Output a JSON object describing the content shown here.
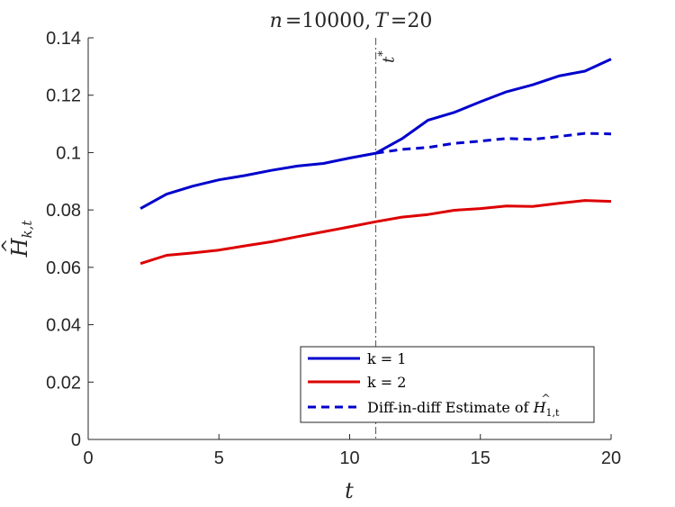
{
  "chart_data": {
    "type": "line",
    "title": "n =10000, T =20",
    "title_parts": {
      "n_sym": "n",
      "n_val": "=10000,",
      "t_sym": "T",
      "t_val": "=20"
    },
    "xlabel": "t",
    "ylabel": {
      "base": "H",
      "hat": "^",
      "subscript": "k,t"
    },
    "xlim": [
      0,
      20
    ],
    "ylim": [
      0,
      0.14
    ],
    "xticks": [
      0,
      5,
      10,
      15,
      20
    ],
    "xtick_labels": [
      "0",
      "5",
      "10",
      "15",
      "20"
    ],
    "yticks": [
      0,
      0.02,
      0.04,
      0.06,
      0.08,
      0.1,
      0.12,
      0.14
    ],
    "ytick_labels": [
      "0",
      "0.02",
      "0.04",
      "0.06",
      "0.08",
      "0.1",
      "0.12",
      "0.14"
    ],
    "grid": false,
    "legend_position": "bottom-right",
    "vline": {
      "x": 11,
      "label": {
        "base": "t",
        "sup": "*"
      },
      "style": "dash-dot",
      "color": "#555555"
    },
    "series": [
      {
        "name": "k = 1",
        "color": "#0000cc",
        "dash": "solid",
        "x": [
          2,
          3,
          4,
          5,
          6,
          7,
          8,
          9,
          10,
          11,
          12,
          13,
          14,
          15,
          16,
          17,
          18,
          19,
          20
        ],
        "values": [
          0.0805,
          0.0855,
          0.0883,
          0.0905,
          0.092,
          0.0938,
          0.0953,
          0.0962,
          0.0981,
          0.0998,
          0.1048,
          0.1113,
          0.114,
          0.1177,
          0.1212,
          0.1236,
          0.1267,
          0.1284,
          0.1326
        ]
      },
      {
        "name": "k = 2",
        "color": "#dd0000",
        "dash": "solid",
        "x": [
          2,
          3,
          4,
          5,
          6,
          7,
          8,
          9,
          10,
          11,
          12,
          13,
          14,
          15,
          16,
          17,
          18,
          19,
          20
        ],
        "values": [
          0.0613,
          0.0642,
          0.065,
          0.066,
          0.0675,
          0.0689,
          0.0707,
          0.0724,
          0.0741,
          0.0759,
          0.0775,
          0.0784,
          0.0799,
          0.0805,
          0.0814,
          0.0812,
          0.0823,
          0.0833,
          0.083
        ]
      },
      {
        "name": "Diff-in-diff Estimate of Ĥ1,t",
        "legend_label": {
          "text": "Diff-in-diff Estimate of ",
          "base": "H",
          "subscript": "1,t"
        },
        "color": "#0000cc",
        "dash": "dashed",
        "x": [
          11,
          12,
          13,
          14,
          15,
          16,
          17,
          18,
          19,
          20
        ],
        "values": [
          0.0998,
          0.1011,
          0.1018,
          0.1032,
          0.104,
          0.1049,
          0.1046,
          0.1056,
          0.1067,
          0.1065
        ]
      }
    ]
  }
}
